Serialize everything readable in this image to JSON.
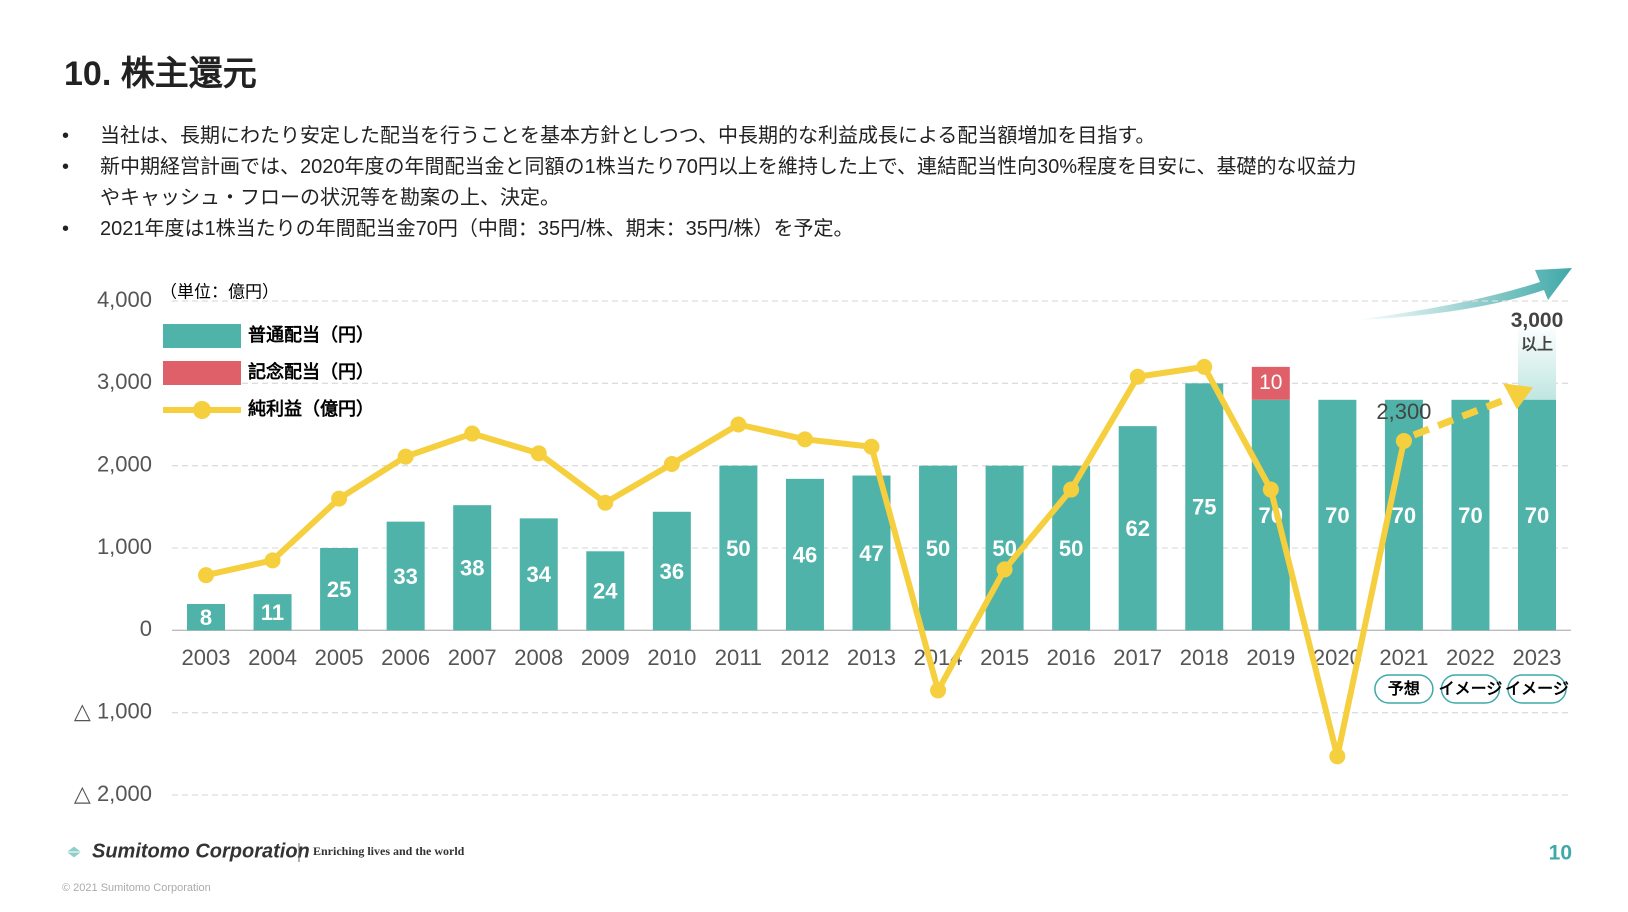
{
  "title": "10. 株主還元",
  "bullets": [
    "当社は、長期にわたり安定した配当を行うことを基本方針としつつ、中長期的な利益成長による配当額増加を目指す。",
    "新中期経営計画では、2020年度の年間配当金と同額の1株当たり70円以上を維持した上で、連結配当性向30%程度を目安に、基礎的な収益力やキャッシュ・フローの状況等を勘案の上、決定。",
    "2021年度は1株当たりの年間配当金70円（中間：35円/株、期末：35円/株）を予定。"
  ],
  "chart_data": {
    "type": "bar",
    "unit_label": "（単位：億円）",
    "categories": [
      "2003",
      "2004",
      "2005",
      "2006",
      "2007",
      "2008",
      "2009",
      "2010",
      "2011",
      "2012",
      "2013",
      "2014",
      "2015",
      "2016",
      "2017",
      "2018",
      "2019",
      "2020",
      "2021",
      "2022",
      "2023"
    ],
    "series": [
      {
        "name": "普通配当（円）",
        "type": "bar",
        "axis": "y2",
        "color": "#4fb3a9",
        "values": [
          8,
          11,
          25,
          33,
          38,
          34,
          24,
          36,
          50,
          46,
          47,
          50,
          50,
          50,
          62,
          75,
          70,
          70,
          70,
          70,
          70
        ]
      },
      {
        "name": "記念配当（円）",
        "type": "bar",
        "axis": "y2",
        "color": "#e0606a",
        "values": [
          null,
          null,
          null,
          null,
          null,
          null,
          null,
          null,
          null,
          null,
          null,
          null,
          null,
          null,
          null,
          null,
          10,
          null,
          null,
          null,
          null
        ]
      },
      {
        "name": "純利益（億円）",
        "type": "line",
        "color": "#f6cf3e",
        "values": [
          670,
          850,
          1600,
          2110,
          2390,
          2150,
          1550,
          2020,
          2500,
          2320,
          2230,
          -730,
          740,
          1710,
          3080,
          3200,
          1710,
          -1530,
          2300,
          null,
          null
        ],
        "value_labels": [
          null,
          null,
          null,
          null,
          null,
          null,
          null,
          null,
          null,
          null,
          null,
          null,
          null,
          null,
          null,
          null,
          null,
          null,
          "2,300",
          null,
          null
        ]
      }
    ],
    "target": {
      "value": 3000,
      "label": "3,000",
      "note": "以上"
    },
    "badges": [
      null,
      null,
      null,
      null,
      null,
      null,
      null,
      null,
      null,
      null,
      null,
      null,
      null,
      null,
      null,
      null,
      null,
      null,
      "予想",
      "イメージ",
      "イメージ"
    ],
    "ylim": [
      -2000,
      4000
    ],
    "yticks": [
      {
        "value": -2000,
        "label": "△ 2,000"
      },
      {
        "value": -1000,
        "label": "△ 1,000"
      },
      0,
      {
        "value": 1000,
        "label": "1,000"
      },
      {
        "value": 2000,
        "label": "2,000"
      },
      {
        "value": 3000,
        "label": "3,000"
      },
      {
        "value": 4000,
        "label": "4,000"
      }
    ],
    "y2lim": [
      -50,
      100
    ],
    "grid": true,
    "legend": "upper left"
  },
  "footer": {
    "brand": "Sumitomo Corporation",
    "tagline": "Enriching lives and the world",
    "page": "10",
    "copyright": "© 2021 Sumitomo Corporation"
  }
}
